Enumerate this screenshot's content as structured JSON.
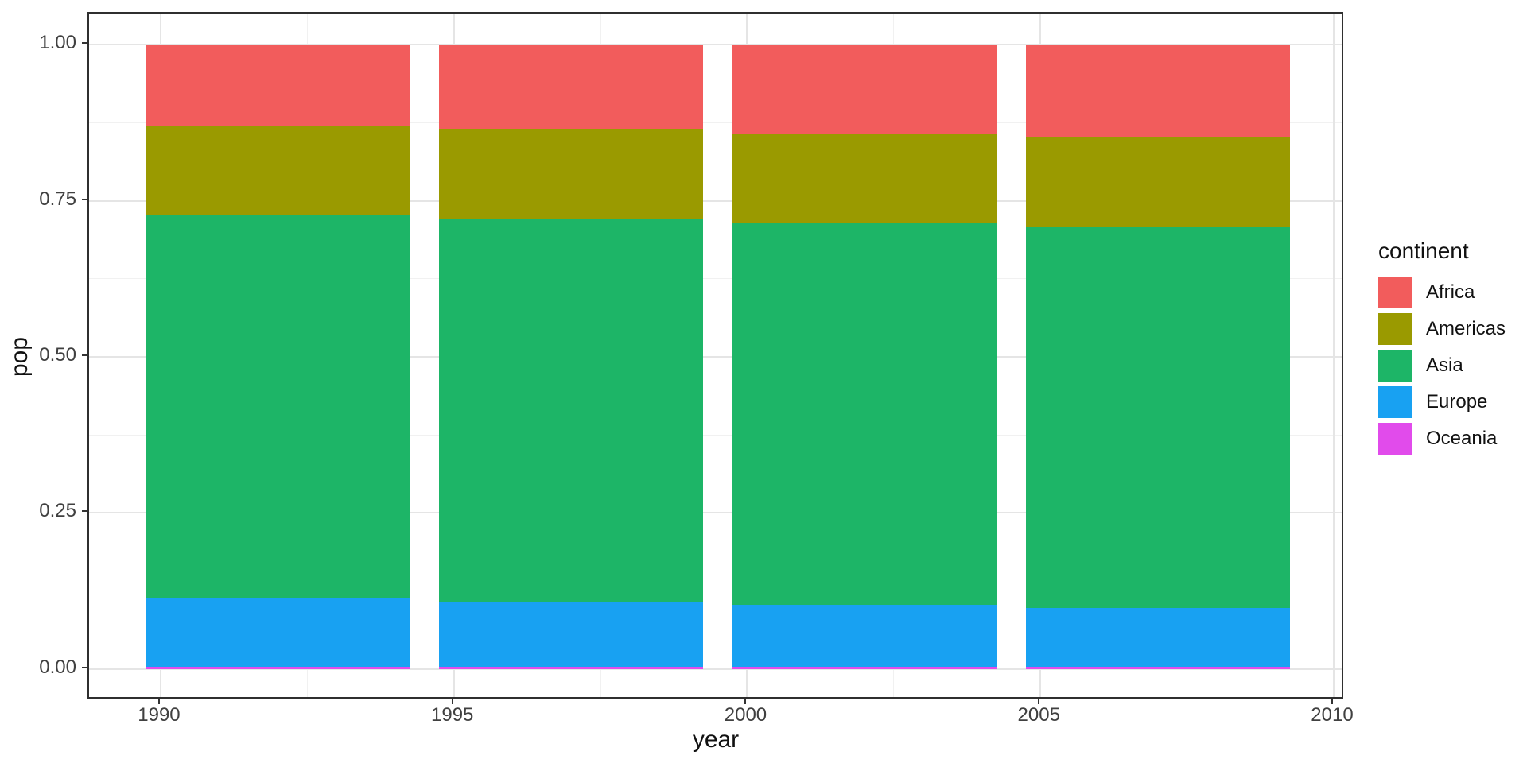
{
  "chart_data": {
    "type": "bar",
    "stacking": "fill",
    "title": "",
    "xlabel": "year",
    "ylabel": "pop",
    "legend_title": "continent",
    "legend_position": "right",
    "grid": true,
    "x": [
      1992,
      1997,
      2002,
      2007
    ],
    "bar_width": 4.5,
    "x_axis": {
      "tick_labels": [
        "1990",
        "1995",
        "2000",
        "2005",
        "2010"
      ],
      "tick_values": [
        1990,
        1995,
        2000,
        2005,
        2010
      ],
      "minor_ticks": [
        1992.5,
        1997.5,
        2002.5,
        2007.5
      ],
      "range": [
        1988.78,
        2010.19
      ]
    },
    "y_axis": {
      "tick_labels": [
        "1.00",
        "0.75",
        "0.50",
        "0.25",
        "0.00"
      ],
      "tick_values": [
        1.0,
        0.75,
        0.5,
        0.25,
        0.0
      ],
      "minor_ticks": [
        0.875,
        0.625,
        0.375,
        0.125
      ],
      "range": [
        -0.05,
        1.05
      ]
    },
    "stack_order_bottom_to_top": [
      "Oceania",
      "Europe",
      "Asia",
      "Americas",
      "Africa"
    ],
    "series": [
      {
        "name": "Africa",
        "color": "#F25C5C",
        "values": [
          0.129,
          0.1349,
          0.1416,
          0.1487
        ]
      },
      {
        "name": "Americas",
        "color": "#9A9A00",
        "values": [
          0.1446,
          0.1445,
          0.1443,
          0.1438
        ]
      },
      {
        "name": "Asia",
        "color": "#1DB567",
        "values": [
          0.6131,
          0.6134,
          0.6118,
          0.6098
        ]
      },
      {
        "name": "Europe",
        "color": "#18A1F2",
        "values": [
          0.1092,
          0.1032,
          0.0982,
          0.0938
        ]
      },
      {
        "name": "Oceania",
        "color": "#E14BEB",
        "values": [
          0.0041,
          0.004,
          0.004,
          0.0039
        ]
      }
    ]
  }
}
